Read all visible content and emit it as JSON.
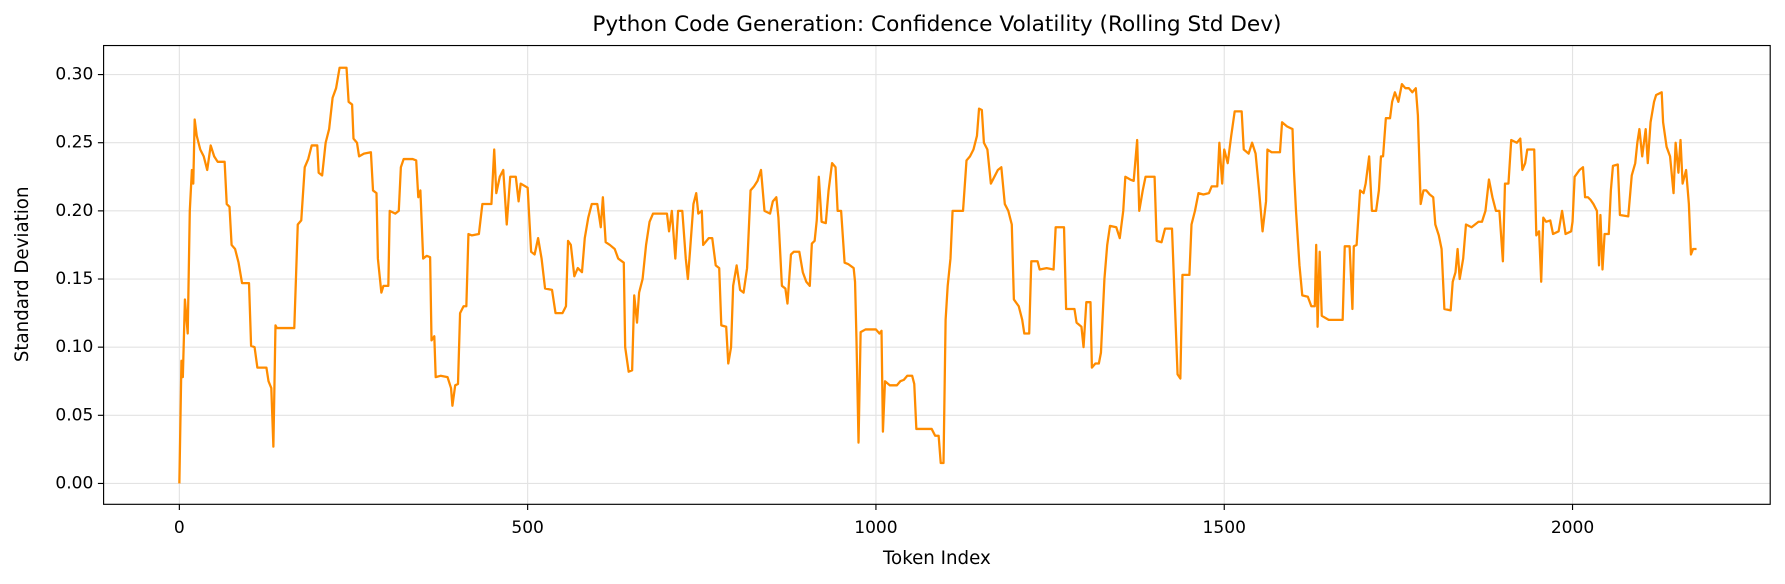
{
  "chart_data": {
    "type": "line",
    "title": "Python Code Generation: Confidence Volatility (Rolling Std Dev)",
    "xlabel": "Token Index",
    "ylabel": "Standard Deviation",
    "color": "#ff8c00",
    "grid": true,
    "xlim": [
      -108.75,
      2283.75
    ],
    "ylim": [
      -0.0153,
      0.3213
    ],
    "xticks": [
      0,
      500,
      1000,
      1500,
      2000
    ],
    "yticks": [
      {
        "value": 0,
        "label": "0.00"
      },
      {
        "value": 0.05,
        "label": "0.05"
      },
      {
        "value": 0.1,
        "label": "0.10"
      },
      {
        "value": 0.15,
        "label": "0.15"
      },
      {
        "value": 0.2,
        "label": "0.20"
      },
      {
        "value": 0.25,
        "label": "0.25"
      },
      {
        "value": 0.3,
        "label": "0.30"
      }
    ],
    "x": [
      0,
      3,
      5,
      8,
      12,
      15,
      18,
      20,
      22,
      25,
      30,
      35,
      40,
      45,
      50,
      55,
      65,
      68,
      72,
      75,
      80,
      85,
      90,
      100,
      103,
      108,
      112,
      125,
      128,
      132,
      135,
      138,
      140,
      150,
      165,
      170,
      175,
      180,
      185,
      190,
      198,
      200,
      205,
      210,
      215,
      220,
      225,
      230,
      240,
      243,
      248,
      250,
      255,
      258,
      265,
      275,
      278,
      283,
      285,
      290,
      293,
      300,
      302,
      310,
      315,
      318,
      322,
      335,
      340,
      343,
      346,
      350,
      355,
      360,
      362,
      366,
      368,
      375,
      385,
      390,
      392,
      396,
      400,
      403,
      408,
      412,
      415,
      420,
      430,
      435,
      448,
      452,
      455,
      460,
      465,
      470,
      475,
      483,
      487,
      490,
      500,
      505,
      510,
      515,
      520,
      525,
      535,
      540,
      550,
      555,
      558,
      562,
      567,
      572,
      578,
      582,
      587,
      592,
      600,
      605,
      608,
      612,
      618,
      625,
      630,
      638,
      640,
      645,
      650,
      653,
      657,
      660,
      665,
      670,
      675,
      680,
      700,
      703,
      707,
      712,
      716,
      722,
      727,
      730,
      733,
      738,
      742,
      745,
      750,
      752,
      760,
      765,
      770,
      775,
      778,
      785,
      788,
      792,
      795,
      800,
      805,
      810,
      815,
      820,
      825,
      830,
      835,
      840,
      848,
      852,
      857,
      860,
      865,
      870,
      873,
      878,
      882,
      890,
      895,
      900,
      905,
      908,
      912,
      915,
      918,
      922,
      928,
      932,
      937,
      942,
      945,
      950,
      955,
      960,
      968,
      970,
      972,
      975,
      978,
      985,
      1000,
      1005,
      1008,
      1010,
      1013,
      1020,
      1030,
      1035,
      1040,
      1045,
      1052,
      1055,
      1058,
      1065,
      1080,
      1085,
      1090,
      1093,
      1097,
      1100,
      1103,
      1107,
      1110,
      1125,
      1130,
      1135,
      1140,
      1145,
      1148,
      1152,
      1155,
      1160,
      1165,
      1170,
      1175,
      1180,
      1185,
      1190,
      1195,
      1198,
      1205,
      1210,
      1213,
      1220,
      1223,
      1232,
      1235,
      1245,
      1255,
      1258,
      1270,
      1273,
      1285,
      1288,
      1295,
      1298,
      1302,
      1308,
      1310,
      1315,
      1320,
      1323,
      1328,
      1332,
      1336,
      1345,
      1350,
      1355,
      1358,
      1365,
      1370,
      1375,
      1378,
      1383,
      1387,
      1400,
      1403,
      1410,
      1415,
      1425,
      1433,
      1437,
      1440,
      1450,
      1453,
      1458,
      1463,
      1470,
      1478,
      1482,
      1490,
      1493,
      1497,
      1500,
      1505,
      1510,
      1515,
      1525,
      1528,
      1535,
      1540,
      1545,
      1550,
      1555,
      1560,
      1562,
      1568,
      1580,
      1583,
      1590,
      1598,
      1600,
      1603,
      1608,
      1612,
      1620,
      1625,
      1630,
      1632,
      1634,
      1637,
      1640,
      1650,
      1670,
      1673,
      1680,
      1684,
      1686,
      1690,
      1695,
      1700,
      1703,
      1708,
      1712,
      1718,
      1722,
      1725,
      1728,
      1732,
      1738,
      1741,
      1745,
      1750,
      1755,
      1760,
      1765,
      1770,
      1775,
      1778,
      1782,
      1786,
      1790,
      1795,
      1800,
      1803,
      1808,
      1812,
      1816,
      1825,
      1828,
      1832,
      1835,
      1838,
      1843,
      1847,
      1855,
      1865,
      1870,
      1875,
      1880,
      1885,
      1890,
      1895,
      1900,
      1903,
      1908,
      1912,
      1920,
      1925,
      1928,
      1932,
      1935,
      1945,
      1948,
      1952,
      1955,
      1958,
      1962,
      1968,
      1972,
      1980,
      1985,
      1990,
      1998,
      2000,
      2003,
      2010,
      2015,
      2018,
      2022,
      2026,
      2030,
      2035,
      2038,
      2040,
      2043,
      2046,
      2052,
      2055,
      2058,
      2065,
      2068,
      2080,
      2085,
      2090,
      2093,
      2096,
      2100,
      2105,
      2108,
      2112,
      2117,
      2120,
      2128,
      2130,
      2135,
      2140,
      2145,
      2148,
      2152,
      2155,
      2158,
      2163,
      2167,
      2170,
      2173,
      2178
    ],
    "values": [
      0,
      0.09,
      0.078,
      0.135,
      0.11,
      0.2,
      0.23,
      0.22,
      0.267,
      0.255,
      0.245,
      0.24,
      0.23,
      0.248,
      0.24,
      0.236,
      0.236,
      0.205,
      0.203,
      0.175,
      0.172,
      0.162,
      0.147,
      0.147,
      0.101,
      0.1,
      0.085,
      0.085,
      0.075,
      0.07,
      0.027,
      0.116,
      0.114,
      0.114,
      0.114,
      0.19,
      0.193,
      0.232,
      0.238,
      0.248,
      0.248,
      0.228,
      0.226,
      0.25,
      0.26,
      0.283,
      0.29,
      0.305,
      0.305,
      0.28,
      0.278,
      0.253,
      0.25,
      0.24,
      0.242,
      0.243,
      0.215,
      0.213,
      0.165,
      0.14,
      0.145,
      0.145,
      0.2,
      0.198,
      0.2,
      0.232,
      0.238,
      0.238,
      0.237,
      0.21,
      0.215,
      0.165,
      0.167,
      0.166,
      0.105,
      0.108,
      0.078,
      0.079,
      0.078,
      0.07,
      0.057,
      0.072,
      0.073,
      0.125,
      0.13,
      0.13,
      0.183,
      0.182,
      0.183,
      0.205,
      0.205,
      0.245,
      0.213,
      0.225,
      0.23,
      0.19,
      0.225,
      0.225,
      0.207,
      0.22,
      0.217,
      0.17,
      0.168,
      0.18,
      0.165,
      0.143,
      0.142,
      0.125,
      0.125,
      0.13,
      0.178,
      0.175,
      0.152,
      0.158,
      0.155,
      0.18,
      0.195,
      0.205,
      0.205,
      0.188,
      0.21,
      0.177,
      0.175,
      0.172,
      0.165,
      0.162,
      0.1,
      0.082,
      0.083,
      0.138,
      0.118,
      0.14,
      0.15,
      0.175,
      0.192,
      0.198,
      0.198,
      0.185,
      0.2,
      0.165,
      0.2,
      0.2,
      0.165,
      0.15,
      0.17,
      0.205,
      0.213,
      0.198,
      0.2,
      0.175,
      0.18,
      0.18,
      0.16,
      0.158,
      0.116,
      0.115,
      0.088,
      0.1,
      0.145,
      0.16,
      0.142,
      0.14,
      0.158,
      0.215,
      0.218,
      0.222,
      0.23,
      0.2,
      0.198,
      0.207,
      0.21,
      0.195,
      0.145,
      0.143,
      0.132,
      0.168,
      0.17,
      0.17,
      0.155,
      0.148,
      0.145,
      0.176,
      0.178,
      0.193,
      0.225,
      0.192,
      0.191,
      0.215,
      0.235,
      0.232,
      0.2,
      0.2,
      0.162,
      0.161,
      0.158,
      0.148,
      0.107,
      0.03,
      0.111,
      0.113,
      0.113,
      0.11,
      0.112,
      0.038,
      0.075,
      0.072,
      0.072,
      0.075,
      0.076,
      0.079,
      0.079,
      0.073,
      0.04,
      0.04,
      0.04,
      0.035,
      0.035,
      0.015,
      0.015,
      0.12,
      0.145,
      0.165,
      0.2,
      0.2,
      0.237,
      0.24,
      0.245,
      0.255,
      0.275,
      0.274,
      0.25,
      0.245,
      0.22,
      0.225,
      0.23,
      0.232,
      0.205,
      0.2,
      0.19,
      0.135,
      0.13,
      0.12,
      0.11,
      0.11,
      0.163,
      0.163,
      0.157,
      0.158,
      0.157,
      0.188,
      0.188,
      0.128,
      0.128,
      0.118,
      0.115,
      0.1,
      0.133,
      0.133,
      0.085,
      0.088,
      0.088,
      0.096,
      0.15,
      0.175,
      0.189,
      0.188,
      0.18,
      0.2,
      0.225,
      0.223,
      0.222,
      0.252,
      0.2,
      0.215,
      0.225,
      0.225,
      0.178,
      0.177,
      0.187,
      0.187,
      0.08,
      0.077,
      0.153,
      0.153,
      0.19,
      0.2,
      0.213,
      0.212,
      0.213,
      0.218,
      0.218,
      0.25,
      0.22,
      0.245,
      0.235,
      0.255,
      0.273,
      0.273,
      0.245,
      0.242,
      0.25,
      0.242,
      0.215,
      0.185,
      0.207,
      0.245,
      0.243,
      0.243,
      0.265,
      0.262,
      0.26,
      0.23,
      0.2,
      0.16,
      0.138,
      0.137,
      0.13,
      0.13,
      0.175,
      0.115,
      0.17,
      0.123,
      0.12,
      0.12,
      0.174,
      0.174,
      0.128,
      0.174,
      0.175,
      0.215,
      0.213,
      0.22,
      0.24,
      0.2,
      0.2,
      0.215,
      0.24,
      0.24,
      0.268,
      0.268,
      0.28,
      0.287,
      0.28,
      0.293,
      0.29,
      0.29,
      0.287,
      0.29,
      0.27,
      0.205,
      0.215,
      0.215,
      0.212,
      0.21,
      0.19,
      0.182,
      0.172,
      0.128,
      0.127,
      0.148,
      0.155,
      0.172,
      0.15,
      0.165,
      0.19,
      0.188,
      0.192,
      0.192,
      0.2,
      0.223,
      0.21,
      0.2,
      0.2,
      0.163,
      0.22,
      0.22,
      0.252,
      0.25,
      0.253,
      0.23,
      0.235,
      0.245,
      0.245,
      0.182,
      0.185,
      0.148,
      0.195,
      0.192,
      0.193,
      0.183,
      0.185,
      0.2,
      0.183,
      0.185,
      0.192,
      0.225,
      0.23,
      0.232,
      0.21,
      0.21,
      0.208,
      0.205,
      0.2,
      0.16,
      0.197,
      0.157,
      0.183,
      0.183,
      0.215,
      0.233,
      0.234,
      0.197,
      0.196,
      0.226,
      0.235,
      0.25,
      0.26,
      0.24,
      0.26,
      0.235,
      0.265,
      0.28,
      0.285,
      0.287,
      0.265,
      0.247,
      0.24,
      0.213,
      0.25,
      0.228,
      0.252,
      0.22,
      0.23,
      0.205,
      0.168,
      0.172,
      0.172
    ]
  }
}
